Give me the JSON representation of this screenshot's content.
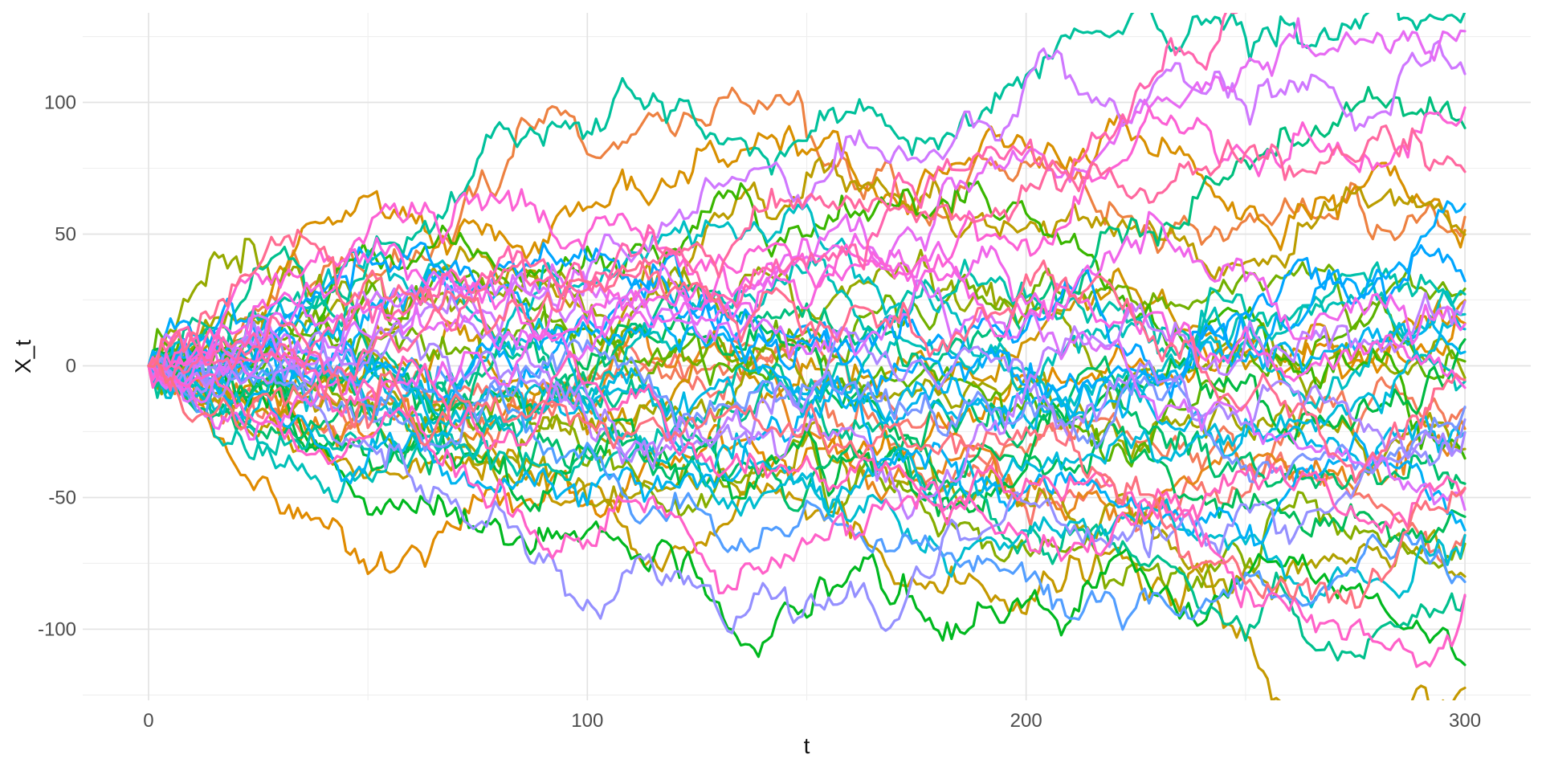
{
  "chart_data": {
    "type": "line",
    "title": "",
    "xlabel": "t",
    "ylabel": "X_t",
    "legend": "none",
    "grid": true,
    "background": "#ffffff",
    "grid_major_color": "#e3e3e3",
    "grid_minor_color": "#efefef",
    "tick_label_color": "#4d4d4d",
    "axis_title_color": "#111111",
    "x_ticks": [
      0,
      100,
      200,
      300
    ],
    "y_ticks": [
      100,
      50,
      0,
      -50,
      -100
    ],
    "x_minor_ticks": [
      50,
      150,
      250
    ],
    "y_minor_ticks": [
      125,
      75,
      25,
      -25,
      -75,
      -125
    ],
    "xlim": [
      -15,
      315
    ],
    "ylim": [
      -127,
      134
    ],
    "series": {
      "kind": "random_walks",
      "description": "many overlapping gaussian random walks, all starting at X_0 = 0",
      "count": 50,
      "t_start": 0,
      "t_end": 300,
      "t_step": 1,
      "start_value": 0,
      "step_sd": 3.3,
      "seed": 11,
      "value_range_estimate": [
        -115,
        122
      ],
      "end_value_range_estimate": [
        -100,
        115
      ]
    },
    "palette": {
      "name": "ggplot-hcl-hue",
      "hue_start": 15,
      "hue_end": 375,
      "chroma": 100,
      "luminance": 65
    }
  }
}
